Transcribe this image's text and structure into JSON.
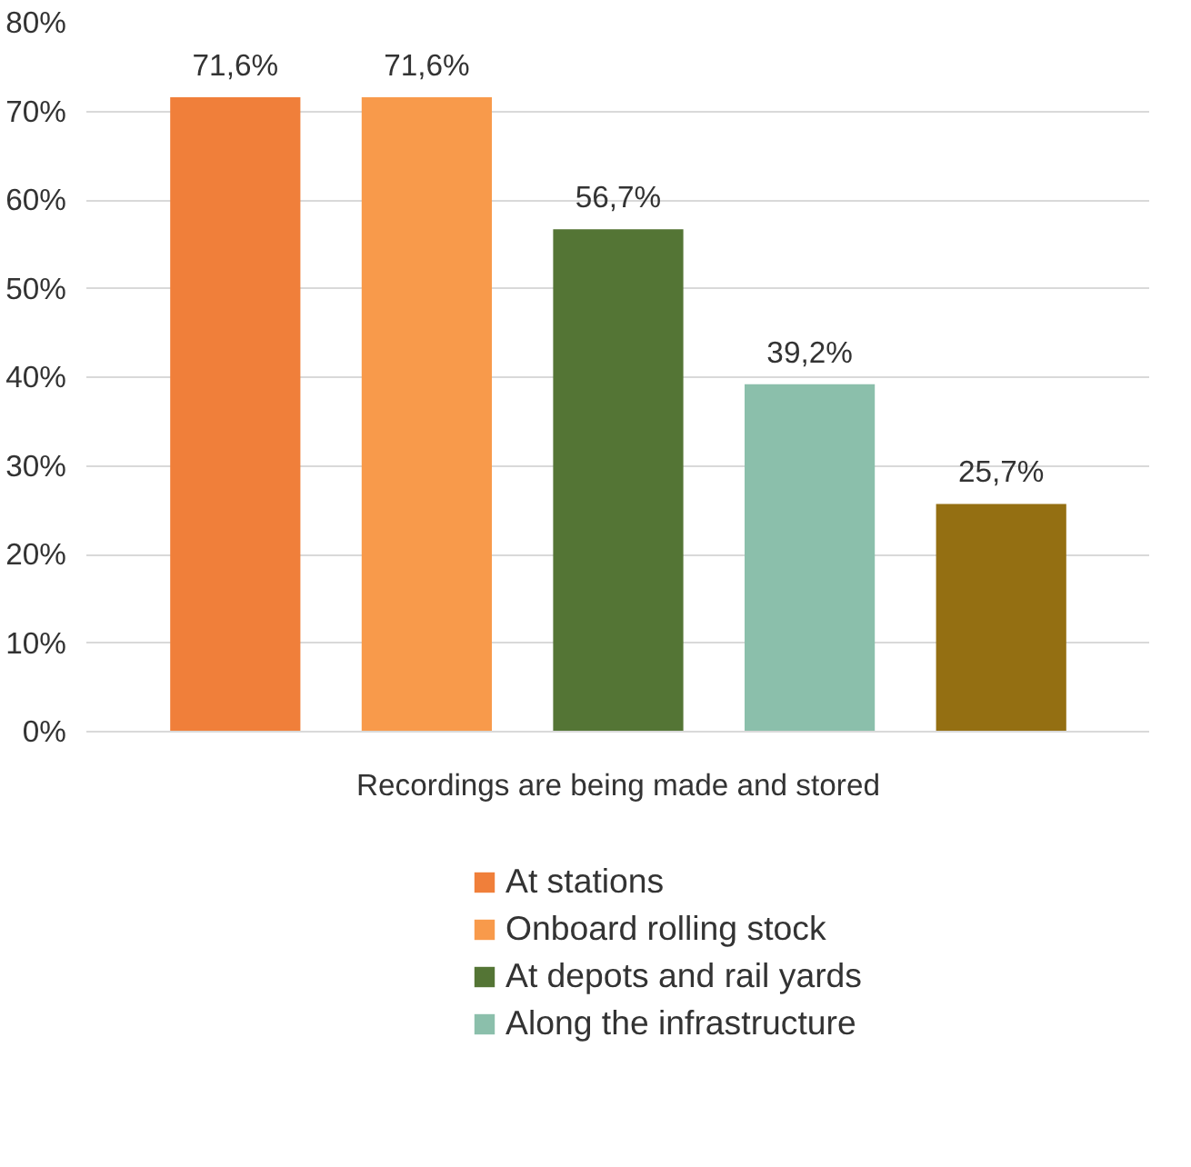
{
  "chart_data": {
    "type": "bar",
    "categories": [
      "Recordings are being made and stored"
    ],
    "series": [
      {
        "name": "At stations",
        "color": "#f07f3a",
        "values": [
          71.6
        ],
        "value_labels": [
          "71,6%"
        ]
      },
      {
        "name": "Onboard rolling stock",
        "color": "#f89a4b",
        "values": [
          71.6
        ],
        "value_labels": [
          "71,6%"
        ]
      },
      {
        "name": "At depots and rail yards",
        "color": "#547535",
        "values": [
          56.7
        ],
        "value_labels": [
          "56,7%"
        ]
      },
      {
        "name": "Along the infrastructure",
        "color": "#8bbfab",
        "values": [
          39.2
        ],
        "value_labels": [
          "39,2%"
        ]
      },
      {
        "color": "#946f12",
        "values": [
          25.7
        ],
        "value_labels": [
          "25,7%"
        ]
      }
    ],
    "ylim": [
      0,
      80
    ],
    "yticks": [
      {
        "value": 0,
        "label": "0%"
      },
      {
        "value": 10,
        "label": "10%"
      },
      {
        "value": 20,
        "label": "20%"
      },
      {
        "value": 30,
        "label": "30%"
      },
      {
        "value": 40,
        "label": "40%"
      },
      {
        "value": 50,
        "label": "50%"
      },
      {
        "value": 60,
        "label": "60%"
      },
      {
        "value": 70,
        "label": "70%"
      },
      {
        "value": 80,
        "label": "80%"
      }
    ],
    "grid": "y",
    "legend": "bottom"
  }
}
